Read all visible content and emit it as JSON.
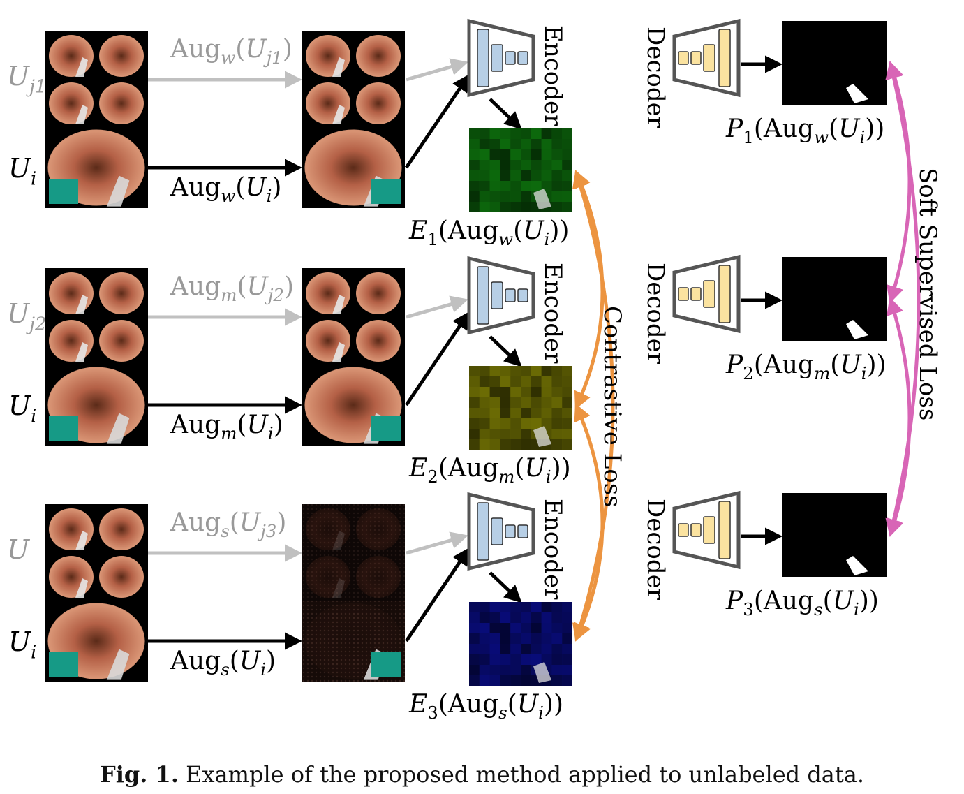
{
  "figure": {
    "caption_label": "Fig. 1.",
    "caption_text": "Example of the proposed method applied to unlabeled data."
  },
  "colors": {
    "gray_arrow": "#c0c0c0",
    "black_arrow": "#000000",
    "encoder_fill": "#b7cfe6",
    "decoder_fill": "#fbe3a0",
    "contrastive_arrow": "#ec9440",
    "supervised_arrow": "#d865b6",
    "embedding_green": "#0f7a0f",
    "embedding_yellow": "#7c7c05",
    "embedding_blue": "#0a0e8a"
  },
  "rows": [
    {
      "batch_symbol": "U",
      "batch_sub": "j1",
      "aug_letter": "w",
      "aug_batch_symbol": "U",
      "aug_batch_sub": "j1",
      "sample_symbol": "U",
      "sample_sub": "i",
      "encoder_label": "Encoder",
      "embedding_letter": "E",
      "embedding_index": "1",
      "embedding_color": "green"
    },
    {
      "batch_symbol": "U",
      "batch_sub": "j2",
      "aug_letter": "m",
      "aug_batch_symbol": "U",
      "aug_batch_sub": "j2",
      "sample_symbol": "U",
      "sample_sub": "i",
      "encoder_label": "Encoder",
      "embedding_letter": "E",
      "embedding_index": "2",
      "embedding_color": "yellow"
    },
    {
      "batch_symbol": "U",
      "batch_sub": "",
      "aug_letter": "s",
      "aug_batch_symbol": "U",
      "aug_batch_sub": "j3",
      "sample_symbol": "U",
      "sample_sub": "i",
      "encoder_label": "Encoder",
      "embedding_letter": "E",
      "embedding_index": "3",
      "embedding_color": "blue"
    }
  ],
  "aug_word": "Aug",
  "decoders": [
    {
      "label": "Decoder",
      "pred_letter": "P",
      "pred_index": "1",
      "aug_letter": "w"
    },
    {
      "label": "Decoder",
      "pred_letter": "P",
      "pred_index": "2",
      "aug_letter": "m"
    },
    {
      "label": "Decoder",
      "pred_letter": "P",
      "pred_index": "3",
      "aug_letter": "s"
    }
  ],
  "losses": {
    "contrastive": "Contrastive Loss",
    "soft_supervised": "Soft Supervised Loss"
  }
}
